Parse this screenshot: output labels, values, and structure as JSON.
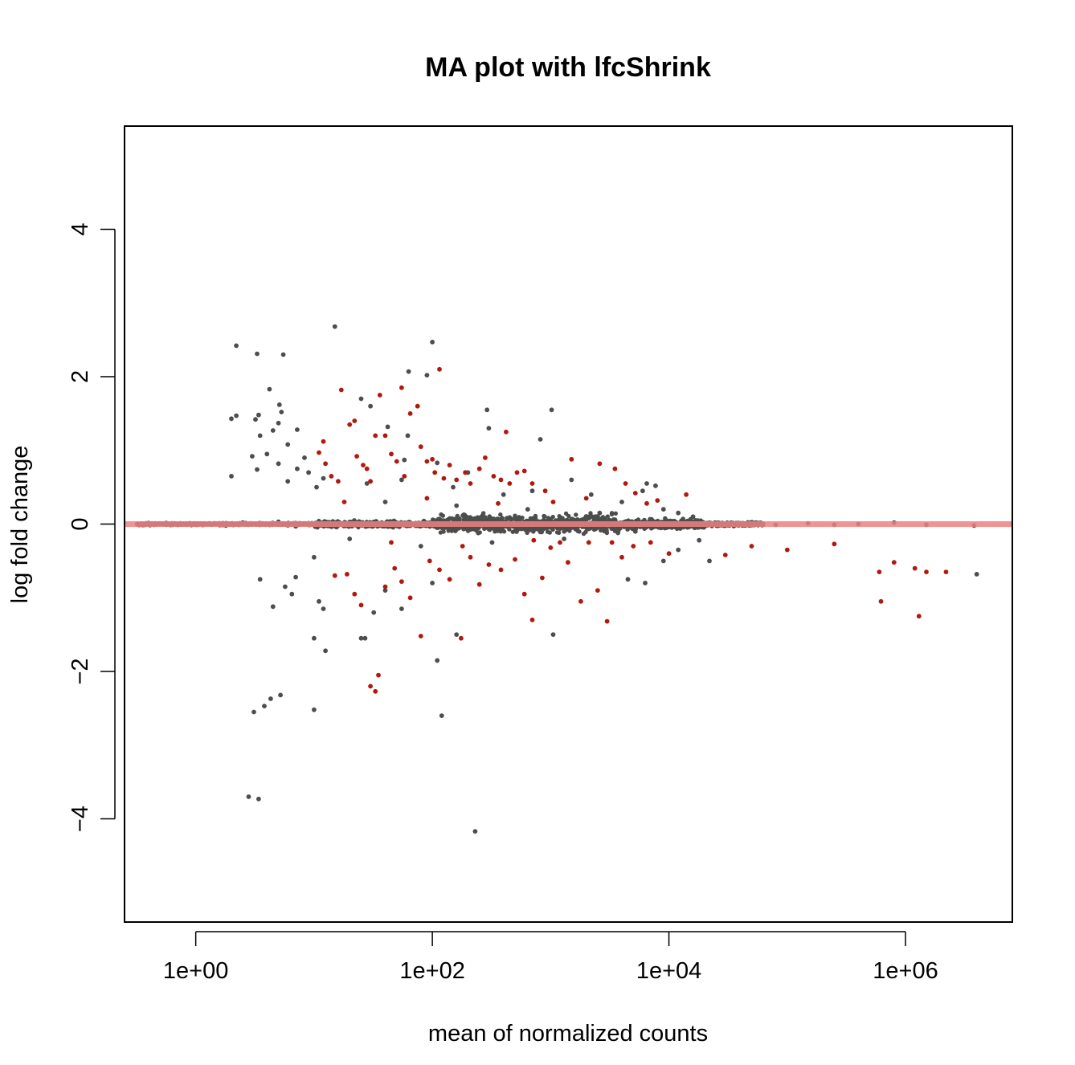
{
  "chart_data": {
    "type": "scatter",
    "title": "MA plot with lfcShrink",
    "xlabel": "mean of normalized counts",
    "ylabel": "log fold change",
    "x_scale": "log10",
    "xlim": [
      0.25,
      8000000
    ],
    "ylim": [
      -5.4,
      5.4
    ],
    "x_ticks": [
      1,
      100,
      10000,
      1000000
    ],
    "x_tick_labels": [
      "1e+00",
      "1e+02",
      "1e+04",
      "1e+06"
    ],
    "y_ticks": [
      -4,
      -2,
      0,
      2,
      4
    ],
    "y_tick_labels": [
      "−4",
      "−2",
      "0",
      "2",
      "4"
    ],
    "reference_line": {
      "y": 0,
      "color": "#f08080"
    },
    "grid": false,
    "colors": {
      "not_significant": "#4d4d4d",
      "significant": "#b2180e"
    },
    "series": [
      {
        "role": "not_significant",
        "points": [
          [
            1.3,
            0.01
          ],
          [
            1.8,
            -0.02
          ],
          [
            2.5,
            0.02
          ],
          [
            3.5,
            -0.01
          ],
          [
            5.0,
            0.03
          ],
          [
            7.0,
            -0.03
          ],
          [
            2.2,
            2.42
          ],
          [
            3.3,
            2.31
          ],
          [
            5.5,
            2.3
          ],
          [
            15,
            2.68
          ],
          [
            100,
            2.47
          ],
          [
            2.0,
            1.43
          ],
          [
            2.2,
            1.47
          ],
          [
            3.2,
            1.42
          ],
          [
            3.4,
            1.48
          ],
          [
            4.5,
            1.27
          ],
          [
            5.0,
            1.37
          ],
          [
            3.5,
            1.2
          ],
          [
            4.2,
            1.83
          ],
          [
            5.1,
            1.62
          ],
          [
            5.3,
            1.52
          ],
          [
            7.2,
            1.28
          ],
          [
            6.0,
            1.08
          ],
          [
            4.0,
            0.95
          ],
          [
            3.0,
            0.92
          ],
          [
            5.0,
            0.82
          ],
          [
            7.2,
            0.75
          ],
          [
            8.3,
            0.9
          ],
          [
            9.0,
            0.7
          ],
          [
            10.5,
            0.5
          ],
          [
            12.0,
            0.62
          ],
          [
            6.0,
            0.58
          ],
          [
            2.0,
            0.65
          ],
          [
            3.3,
            0.74
          ],
          [
            25,
            1.7
          ],
          [
            30,
            1.6
          ],
          [
            42,
            1.32
          ],
          [
            63,
            2.07
          ],
          [
            90,
            2.02
          ],
          [
            62,
            1.2
          ],
          [
            58,
            0.87
          ],
          [
            110,
            0.83
          ],
          [
            290,
            1.55
          ],
          [
            300,
            1.3
          ],
          [
            1020,
            1.55
          ],
          [
            820,
            1.15
          ],
          [
            28,
            0.55
          ],
          [
            55,
            0.6
          ],
          [
            150,
            0.5
          ],
          [
            200,
            0.7
          ],
          [
            400,
            0.4
          ],
          [
            700,
            0.45
          ],
          [
            1500,
            0.6
          ],
          [
            2200,
            0.4
          ],
          [
            4000,
            0.3
          ],
          [
            6500,
            0.55
          ],
          [
            7700,
            0.52
          ],
          [
            6000,
            0.45
          ],
          [
            9000,
            0.2
          ],
          [
            12000,
            0.15
          ],
          [
            16000,
            0.1
          ],
          [
            3.5,
            -0.75
          ],
          [
            5.7,
            -0.85
          ],
          [
            6.5,
            -0.95
          ],
          [
            7.0,
            -0.72
          ],
          [
            10.0,
            -0.45
          ],
          [
            11.0,
            -1.05
          ],
          [
            12.0,
            -1.15
          ],
          [
            10.0,
            -1.55
          ],
          [
            12.5,
            -1.72
          ],
          [
            25,
            -1.55
          ],
          [
            27,
            -1.55
          ],
          [
            32,
            -1.2
          ],
          [
            40,
            -0.9
          ],
          [
            55,
            -1.15
          ],
          [
            100,
            -0.8
          ],
          [
            110,
            -1.85
          ],
          [
            120,
            -2.6
          ],
          [
            160,
            -1.5
          ],
          [
            4.5,
            -1.12
          ],
          [
            3.1,
            -2.55
          ],
          [
            3.8,
            -2.47
          ],
          [
            4.3,
            -2.37
          ],
          [
            5.2,
            -2.32
          ],
          [
            10,
            -2.52
          ],
          [
            2.8,
            -3.7
          ],
          [
            3.4,
            -3.73
          ],
          [
            230,
            -4.17
          ],
          [
            1050,
            -1.5
          ],
          [
            4500,
            -0.75
          ],
          [
            6300,
            -0.8
          ],
          [
            9000,
            -0.5
          ],
          [
            12000,
            -0.35
          ],
          [
            22000,
            -0.5
          ],
          [
            18000,
            -0.22
          ],
          [
            50000,
            0.02
          ],
          [
            80000,
            -0.01
          ],
          [
            150000,
            0.01
          ],
          [
            250000,
            -0.01
          ],
          [
            400000,
            0.0
          ],
          [
            800000,
            0.02
          ],
          [
            1500000,
            -0.01
          ],
          [
            3800000,
            -0.02
          ],
          [
            4000000,
            -0.68
          ],
          [
            20,
            -0.2
          ],
          [
            40,
            0.3
          ],
          [
            80,
            -0.3
          ],
          [
            160,
            0.25
          ],
          [
            320,
            -0.25
          ],
          [
            640,
            0.2
          ],
          [
            1300,
            -0.2
          ],
          [
            2600,
            0.15
          ],
          [
            5200,
            -0.1
          ]
        ]
      },
      {
        "role": "significant",
        "points": [
          [
            12,
            1.12
          ],
          [
            11,
            0.97
          ],
          [
            12.5,
            0.82
          ],
          [
            14,
            0.65
          ],
          [
            16,
            0.58
          ],
          [
            17,
            1.82
          ],
          [
            20,
            1.35
          ],
          [
            22,
            1.4
          ],
          [
            23,
            0.92
          ],
          [
            26,
            0.8
          ],
          [
            28,
            0.75
          ],
          [
            30,
            0.58
          ],
          [
            33,
            1.2
          ],
          [
            36,
            1.75
          ],
          [
            40,
            1.2
          ],
          [
            45,
            0.95
          ],
          [
            50,
            0.85
          ],
          [
            55,
            1.85
          ],
          [
            58,
            0.65
          ],
          [
            65,
            1.5
          ],
          [
            75,
            1.6
          ],
          [
            80,
            1.05
          ],
          [
            90,
            0.85
          ],
          [
            100,
            0.88
          ],
          [
            105,
            0.7
          ],
          [
            115,
            2.1
          ],
          [
            125,
            0.62
          ],
          [
            140,
            0.8
          ],
          [
            160,
            0.6
          ],
          [
            190,
            0.7
          ],
          [
            210,
            0.55
          ],
          [
            250,
            0.75
          ],
          [
            280,
            0.9
          ],
          [
            330,
            0.65
          ],
          [
            380,
            0.6
          ],
          [
            420,
            1.25
          ],
          [
            450,
            0.55
          ],
          [
            520,
            0.7
          ],
          [
            600,
            0.72
          ],
          [
            700,
            0.55
          ],
          [
            900,
            0.45
          ],
          [
            1050,
            0.3
          ],
          [
            1500,
            0.88
          ],
          [
            2000,
            0.35
          ],
          [
            2600,
            0.82
          ],
          [
            3500,
            0.75
          ],
          [
            4300,
            0.55
          ],
          [
            5200,
            0.42
          ],
          [
            8000,
            0.32
          ],
          [
            14000,
            0.4
          ],
          [
            6500,
            0.28
          ],
          [
            15,
            -0.7
          ],
          [
            19,
            -0.68
          ],
          [
            22,
            -0.95
          ],
          [
            25,
            -1.1
          ],
          [
            30,
            -2.2
          ],
          [
            33,
            -2.27
          ],
          [
            35,
            -2.05
          ],
          [
            40,
            -0.85
          ],
          [
            48,
            -0.6
          ],
          [
            55,
            -0.78
          ],
          [
            65,
            -1.0
          ],
          [
            80,
            -1.52
          ],
          [
            95,
            -0.5
          ],
          [
            115,
            -0.62
          ],
          [
            140,
            -0.75
          ],
          [
            175,
            -1.55
          ],
          [
            210,
            -0.45
          ],
          [
            250,
            -0.82
          ],
          [
            300,
            -0.55
          ],
          [
            380,
            -0.62
          ],
          [
            500,
            -0.48
          ],
          [
            600,
            -0.95
          ],
          [
            700,
            -1.3
          ],
          [
            850,
            -0.73
          ],
          [
            1000,
            -0.32
          ],
          [
            1200,
            -0.25
          ],
          [
            1400,
            -0.52
          ],
          [
            1800,
            -1.05
          ],
          [
            2100,
            -0.25
          ],
          [
            2500,
            -0.9
          ],
          [
            3000,
            -1.32
          ],
          [
            3300,
            -0.25
          ],
          [
            4000,
            -0.45
          ],
          [
            5000,
            -0.3
          ],
          [
            7000,
            -0.25
          ],
          [
            10000,
            -0.4
          ],
          [
            30000,
            -0.42
          ],
          [
            50000,
            -0.3
          ],
          [
            100000,
            -0.35
          ],
          [
            250000,
            -0.27
          ],
          [
            600000,
            -0.65
          ],
          [
            620000,
            -1.05
          ],
          [
            800000,
            -0.52
          ],
          [
            1200000,
            -0.6
          ],
          [
            1300000,
            -1.25
          ],
          [
            1500000,
            -0.65
          ],
          [
            2200000,
            -0.65
          ],
          [
            18,
            0.3
          ],
          [
            45,
            -0.25
          ],
          [
            90,
            0.35
          ],
          [
            180,
            -0.3
          ],
          [
            360,
            0.28
          ],
          [
            720,
            -0.22
          ]
        ]
      }
    ]
  }
}
